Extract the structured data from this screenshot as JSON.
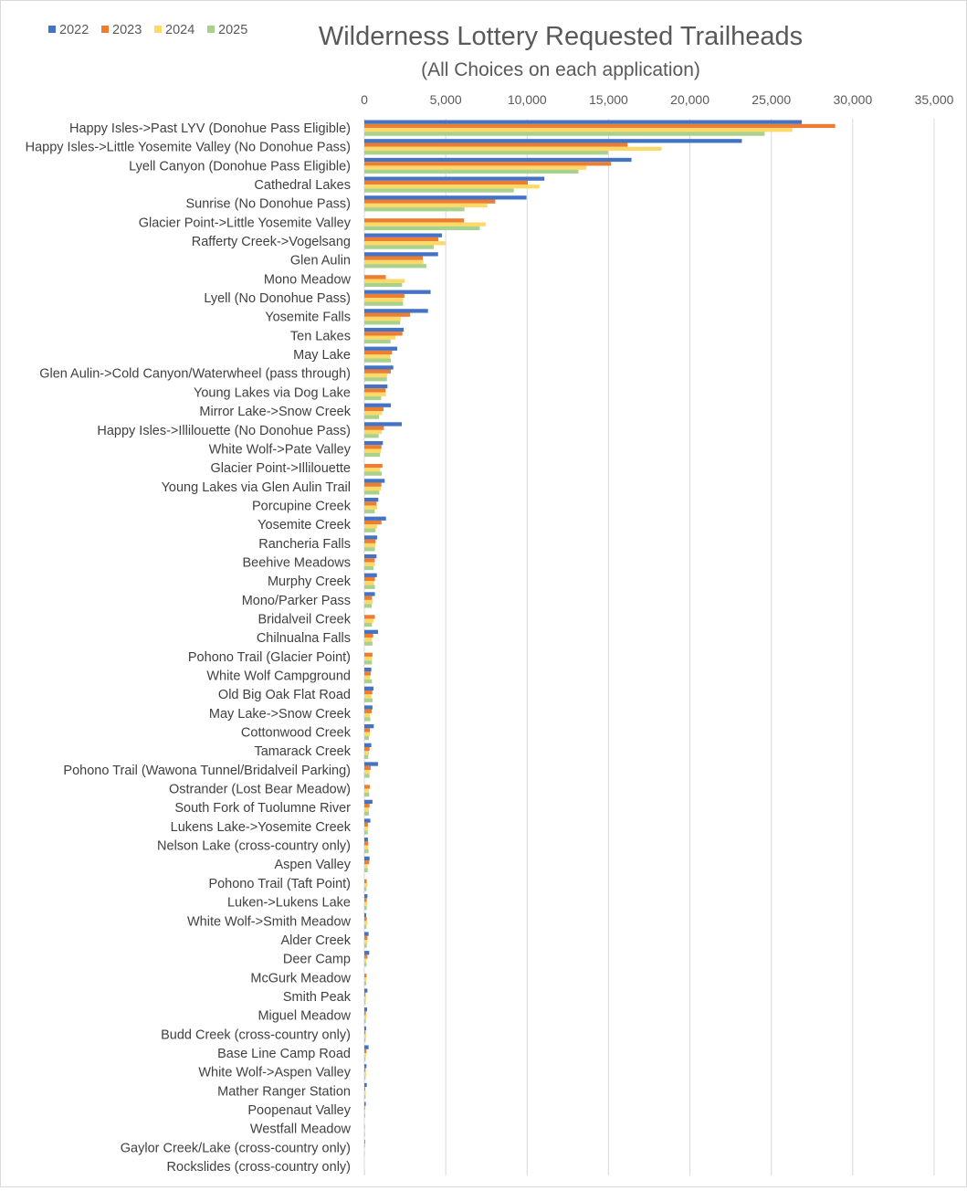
{
  "chart_data": {
    "type": "bar",
    "orientation": "horizontal",
    "title": "Wilderness Lottery Requested Trailheads",
    "subtitle": "(All Choices on each application)",
    "xlim": [
      0,
      35000
    ],
    "xticks": [
      0,
      5000,
      10000,
      15000,
      20000,
      25000,
      30000,
      35000
    ],
    "xtick_labels": [
      "0",
      "5,000",
      "10,000",
      "15,000",
      "20,000",
      "25,000",
      "30,000",
      "35,000"
    ],
    "x_axis_position": "top",
    "grid": true,
    "legend_position": "top-left",
    "categories": [
      "Happy Isles->Past LYV (Donohue Pass Eligible)",
      "Happy Isles->Little Yosemite Valley (No Donohue Pass)",
      "Lyell Canyon (Donohue Pass Eligible)",
      "Cathedral Lakes",
      "Sunrise (No Donohue Pass)",
      "Glacier Point->Little Yosemite Valley",
      "Rafferty Creek->Vogelsang",
      "Glen Aulin",
      "Mono Meadow",
      "Lyell (No Donohue Pass)",
      "Yosemite Falls",
      "Ten Lakes",
      "May Lake",
      "Glen Aulin->Cold Canyon/Waterwheel (pass through)",
      "Young Lakes via Dog Lake",
      "Mirror Lake->Snow Creek",
      "Happy Isles->Illilouette (No Donohue Pass)",
      "White Wolf->Pate Valley",
      "Glacier Point->Illilouette",
      "Young Lakes via Glen Aulin Trail",
      "Porcupine Creek",
      "Yosemite Creek",
      "Rancheria Falls",
      "Beehive Meadows",
      "Murphy Creek",
      "Mono/Parker Pass",
      "Bridalveil Creek",
      "Chilnualna Falls",
      "Pohono Trail (Glacier Point)",
      "White Wolf Campground",
      "Old Big Oak Flat Road",
      "May Lake->Snow Creek",
      "Cottonwood Creek",
      "Tamarack Creek",
      "Pohono Trail (Wawona Tunnel/Bridalveil Parking)",
      "Ostrander (Lost Bear Meadow)",
      "South Fork of Tuolumne River",
      "Lukens Lake->Yosemite Creek",
      "Nelson Lake (cross-country only)",
      "Aspen Valley",
      "Pohono Trail (Taft Point)",
      "Luken->Lukens Lake",
      "White Wolf->Smith Meadow",
      "Alder Creek",
      "Deer Camp",
      "McGurk Meadow",
      "Smith Peak",
      "Miguel Meadow",
      "Budd Creek (cross-country only)",
      "Base Line Camp Road",
      "White Wolf->Aspen Valley",
      "Mather Ranger Station",
      "Poopenaut Valley",
      "Westfall Meadow",
      "Gaylor Creek/Lake (cross-country only)",
      "Rockslides (cross-country only)"
    ],
    "series": [
      {
        "name": "2022",
        "color": "#4472C4",
        "values": [
          26870,
          23190,
          16410,
          11060,
          9960,
          0,
          4770,
          4530,
          0,
          4070,
          3910,
          2420,
          2020,
          1780,
          1420,
          1630,
          2300,
          1140,
          0,
          1250,
          860,
          1330,
          790,
          750,
          770,
          650,
          0,
          840,
          0,
          430,
          560,
          500,
          580,
          430,
          840,
          0,
          500,
          370,
          220,
          320,
          0,
          190,
          110,
          260,
          300,
          0,
          190,
          170,
          110,
          260,
          130,
          150,
          90,
          0,
          40,
          0
        ]
      },
      {
        "name": "2023",
        "color": "#ED7D31",
        "values": [
          28920,
          16170,
          15150,
          10040,
          8040,
          6130,
          4550,
          3590,
          1320,
          2460,
          2810,
          2340,
          1700,
          1630,
          1310,
          1180,
          1200,
          1050,
          1110,
          1050,
          750,
          1050,
          690,
          640,
          650,
          470,
          650,
          540,
          500,
          390,
          490,
          450,
          340,
          320,
          390,
          340,
          320,
          220,
          240,
          300,
          150,
          150,
          150,
          190,
          190,
          130,
          75,
          90,
          75,
          130,
          75,
          55,
          40,
          20,
          10,
          0
        ]
      },
      {
        "name": "2024",
        "color": "#FFD966",
        "values": [
          26290,
          18260,
          13650,
          10760,
          7560,
          7450,
          4990,
          3630,
          2480,
          2380,
          2240,
          1910,
          1570,
          1400,
          1330,
          1090,
          1070,
          1010,
          980,
          1010,
          800,
          790,
          670,
          650,
          600,
          520,
          560,
          470,
          470,
          340,
          430,
          340,
          340,
          280,
          320,
          280,
          280,
          220,
          240,
          190,
          190,
          190,
          190,
          190,
          130,
          130,
          110,
          130,
          110,
          110,
          110,
          90,
          55,
          40,
          20,
          20
        ]
      },
      {
        "name": "2025",
        "color": "#A9D18E",
        "values": [
          24590,
          14970,
          13150,
          9180,
          6150,
          7090,
          4270,
          3810,
          2320,
          2380,
          2200,
          1610,
          1630,
          1390,
          1030,
          900,
          880,
          970,
          1070,
          920,
          640,
          690,
          650,
          560,
          650,
          450,
          470,
          500,
          470,
          470,
          500,
          370,
          280,
          240,
          320,
          300,
          280,
          210,
          260,
          210,
          130,
          150,
          130,
          150,
          130,
          110,
          75,
          90,
          75,
          75,
          75,
          75,
          55,
          40,
          20,
          20
        ]
      }
    ]
  }
}
